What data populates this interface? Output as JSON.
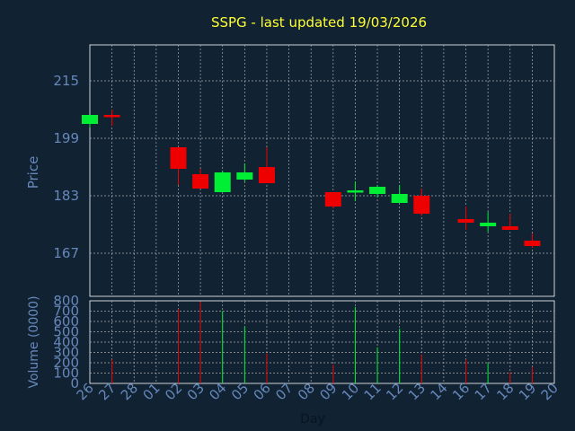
{
  "colors": {
    "background": "#112233",
    "title": "#ffff33",
    "axis_text": "#6688bb",
    "grid": "#aaaaaa",
    "up": "#00ee33",
    "down": "#ee0000",
    "axis_line": "#ffffff"
  },
  "chart_data": [
    {
      "type": "candlestick",
      "title": "SSPG - last updated 19/03/2026",
      "ylabel": "Price",
      "ylim": [
        155,
        225
      ],
      "yticks": [
        215,
        199,
        183,
        167
      ],
      "grid": true,
      "categories": [
        "26",
        "27",
        "28",
        "01",
        "02",
        "03",
        "04",
        "05",
        "06",
        "07",
        "08",
        "09",
        "10",
        "11",
        "12",
        "13",
        "14",
        "16",
        "17",
        "18",
        "19",
        "20"
      ],
      "candles": [
        {
          "x": "26",
          "open": 203,
          "high": 205,
          "low": 202,
          "close": 205.5
        },
        {
          "x": "27",
          "open": 205.5,
          "high": 207,
          "low": 202.5,
          "close": 205
        },
        {
          "x": "02",
          "open": 196.5,
          "high": 196.5,
          "low": 186,
          "close": 190.5
        },
        {
          "x": "03",
          "open": 189,
          "high": 190.5,
          "low": 185,
          "close": 185
        },
        {
          "x": "04",
          "open": 184,
          "high": 190,
          "low": 184,
          "close": 189.5
        },
        {
          "x": "05",
          "open": 187.5,
          "high": 192,
          "low": 187,
          "close": 189.5
        },
        {
          "x": "06",
          "open": 191,
          "high": 196.5,
          "low": 187,
          "close": 186.5
        },
        {
          "x": "09",
          "open": 184,
          "high": 184,
          "low": 179.5,
          "close": 180
        },
        {
          "x": "10",
          "open": 184,
          "high": 187,
          "low": 181.5,
          "close": 184.5
        },
        {
          "x": "11",
          "open": 183.5,
          "high": 186,
          "low": 182.5,
          "close": 185.5
        },
        {
          "x": "12",
          "open": 181,
          "high": 186,
          "low": 181,
          "close": 183.5
        },
        {
          "x": "13",
          "open": 183,
          "high": 185,
          "low": 177.5,
          "close": 178
        },
        {
          "x": "16",
          "open": 176.5,
          "high": 180,
          "low": 173.5,
          "close": 175.5
        },
        {
          "x": "17",
          "open": 174.5,
          "high": 178.5,
          "low": 173,
          "close": 175.5
        },
        {
          "x": "18",
          "open": 174.5,
          "high": 178,
          "low": 173.5,
          "close": 173.5
        },
        {
          "x": "19",
          "open": 170.5,
          "high": 172.5,
          "low": 168.5,
          "close": 169
        }
      ]
    },
    {
      "type": "bar",
      "xlabel": "Day",
      "ylabel": "Volume (0000)",
      "ylim": [
        0,
        800
      ],
      "yticks": [
        0,
        100,
        200,
        300,
        400,
        500,
        600,
        700,
        800
      ],
      "categories": [
        "26",
        "27",
        "28",
        "01",
        "02",
        "03",
        "04",
        "05",
        "06",
        "07",
        "08",
        "09",
        "10",
        "11",
        "12",
        "13",
        "14",
        "16",
        "17",
        "18",
        "19",
        "20"
      ],
      "bars": [
        {
          "x": "27",
          "value": 230,
          "direction": "down"
        },
        {
          "x": "02",
          "value": 720,
          "direction": "down"
        },
        {
          "x": "03",
          "value": 790,
          "direction": "down"
        },
        {
          "x": "04",
          "value": 700,
          "direction": "up"
        },
        {
          "x": "05",
          "value": 550,
          "direction": "up"
        },
        {
          "x": "06",
          "value": 290,
          "direction": "down"
        },
        {
          "x": "09",
          "value": 180,
          "direction": "down"
        },
        {
          "x": "10",
          "value": 740,
          "direction": "up"
        },
        {
          "x": "11",
          "value": 350,
          "direction": "up"
        },
        {
          "x": "12",
          "value": 530,
          "direction": "up"
        },
        {
          "x": "13",
          "value": 280,
          "direction": "down"
        },
        {
          "x": "16",
          "value": 230,
          "direction": "down"
        },
        {
          "x": "17",
          "value": 200,
          "direction": "up"
        },
        {
          "x": "18",
          "value": 110,
          "direction": "down"
        },
        {
          "x": "19",
          "value": 160,
          "direction": "down"
        }
      ]
    }
  ]
}
